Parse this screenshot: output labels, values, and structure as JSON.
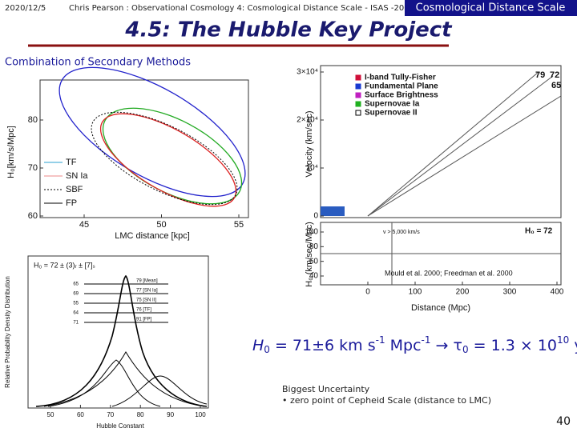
{
  "header": {
    "date": "2020/12/5",
    "author": "Chris Pearson : Observational Cosmology 4: Cosmological Distance Scale - ISAS -2004",
    "section": "Cosmological Distance Scale",
    "title": "4.5: The Hubble Key Project"
  },
  "subtitle": "Combination of Secondary Methods",
  "ellipse_figure": {
    "y_label": "H₀[km/s/Mpc]",
    "x_label": "LMC distance [kpc]",
    "yticks": [
      60,
      70,
      80
    ],
    "xticks": [
      45,
      50,
      55
    ],
    "legend": [
      "TF",
      "SN Ia",
      "SBF",
      "FP"
    ]
  },
  "hubble_figure": {
    "y_label": "Velocity (km/sec)",
    "yticks": [
      0,
      {
        "value": 10000,
        "label": "10⁴"
      },
      {
        "value": 20000,
        "label": "2×10⁴"
      },
      {
        "value": 30000,
        "label": "3×10⁴"
      }
    ],
    "legend": [
      "I-band Tully-Fisher",
      "Fundamental Plane",
      "Surface Brightness",
      "Supernovae Ia",
      "Supernovae II"
    ],
    "line_labels": [
      "79",
      "72",
      "65"
    ],
    "lower_y_label": "H₀ (km/sec/Mpc)",
    "lower_yticks": [
      40,
      60,
      80,
      100
    ],
    "xticks": [
      0,
      100,
      200,
      300,
      400
    ],
    "x_label": "Distance (Mpc)",
    "cut_label": "v > 5,000 km/s",
    "h0_label": "H₀ = 72",
    "credit": "Mould et al. 2000; Freedman et al. 2000"
  },
  "pdf_figure": {
    "header": "H₀ = 72 ± (3)ᵣ ± [7]ₛ",
    "y_label": "Relative Probability Density Distribution",
    "x_label": "Hubble Constant",
    "xticks": [
      50,
      60,
      70,
      80,
      90,
      100
    ],
    "rows": [
      [
        "65",
        "79 [Mean]"
      ],
      [
        "69",
        "77 [SN Ia]"
      ],
      [
        "55",
        "75 [SN II]"
      ],
      [
        "64",
        "76 [TF]"
      ],
      [
        "71",
        "91 [FP]"
      ]
    ]
  },
  "equation": {
    "h": "H",
    "h_sub": "0",
    "main": " = 71±6 km s",
    "sup1": "-1",
    "mid": " Mpc",
    "sup2": "-1",
    "arrow": " → τ",
    "tau_sub": "0",
    "rest": " = 1.3 × 10",
    "exp": "10",
    "unit": " yr"
  },
  "note": {
    "heading": "Biggest Uncertainty",
    "item": "• zero point of Cepheid Scale (distance to LMC)"
  },
  "page_number": "40"
}
